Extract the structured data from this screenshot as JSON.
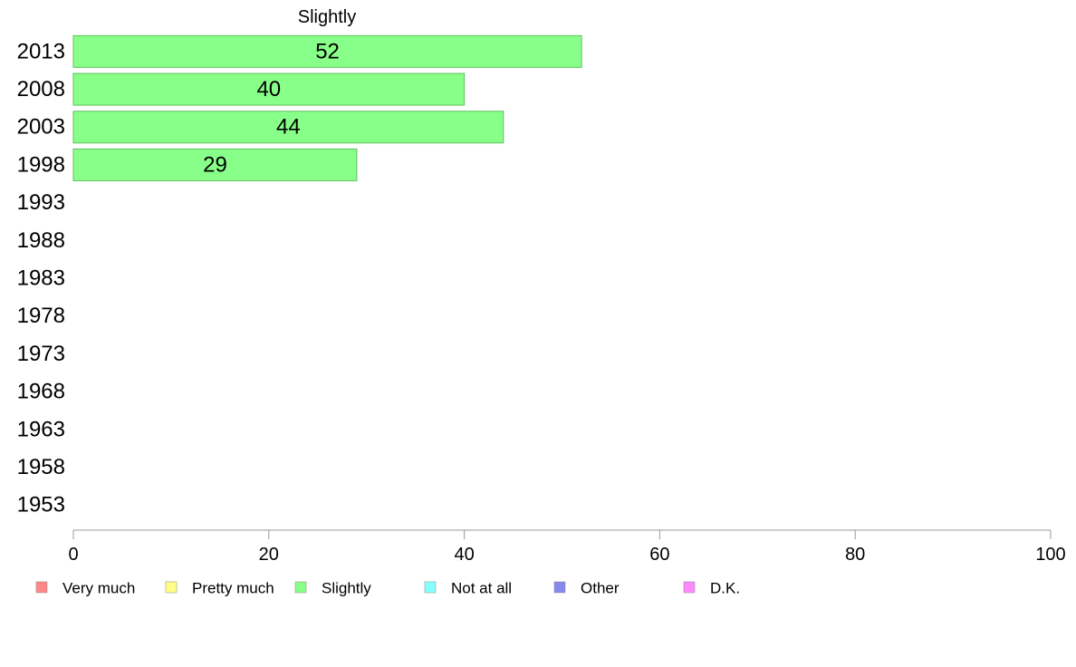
{
  "chart_data": {
    "type": "bar",
    "orientation": "horizontal",
    "title": "Slightly",
    "categories": [
      "2013",
      "2008",
      "2003",
      "1998",
      "1993",
      "1988",
      "1983",
      "1978",
      "1973",
      "1968",
      "1963",
      "1958",
      "1953"
    ],
    "series": [
      {
        "name": "Slightly",
        "values": [
          52,
          40,
          44,
          29,
          null,
          null,
          null,
          null,
          null,
          null,
          null,
          null,
          null
        ],
        "color": "#88ff88"
      }
    ],
    "xlim": [
      0,
      100
    ],
    "x_ticks": [
      0,
      20,
      40,
      60,
      80,
      100
    ],
    "grid": false,
    "legend": {
      "position": "bottom",
      "items": [
        {
          "label": "Very much",
          "color": "#ff8888"
        },
        {
          "label": "Pretty much",
          "color": "#ffff88"
        },
        {
          "label": "Slightly",
          "color": "#88ff88"
        },
        {
          "label": "Not at all",
          "color": "#88ffff"
        },
        {
          "label": "Other",
          "color": "#8888ee"
        },
        {
          "label": "D.K.",
          "color": "#ff88ff"
        }
      ]
    }
  }
}
